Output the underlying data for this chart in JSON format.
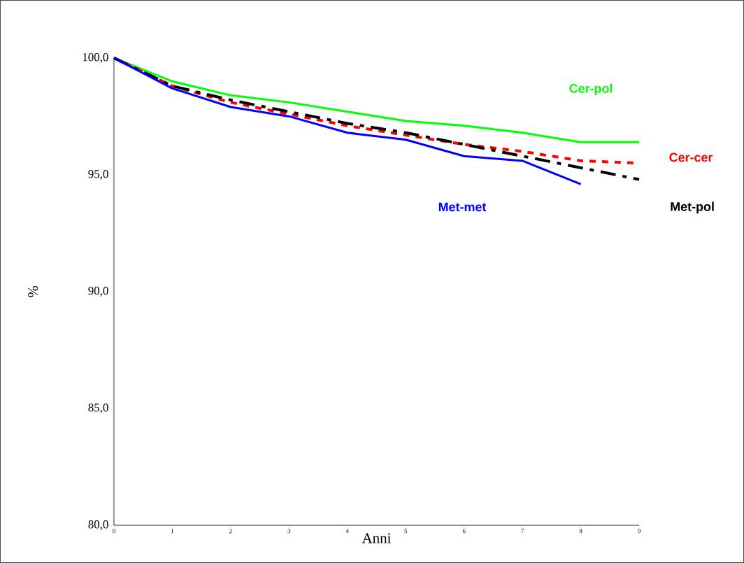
{
  "chart_data": {
    "type": "line",
    "xlabel": "Anni",
    "ylabel": "%",
    "x": [
      0,
      1,
      2,
      3,
      4,
      5,
      6,
      7,
      8,
      9
    ],
    "xlim": [
      0,
      9
    ],
    "xticks": [
      0,
      1,
      2,
      3,
      4,
      5,
      6,
      7,
      8,
      9
    ],
    "ylim": [
      80,
      100
    ],
    "yticks": [
      {
        "value": 80,
        "label": "80,0"
      },
      {
        "value": 85,
        "label": "85,0"
      },
      {
        "value": 90,
        "label": "90,0"
      },
      {
        "value": 95,
        "label": "95,0"
      },
      {
        "value": 100,
        "label": "100,0"
      }
    ],
    "grid": false,
    "series": [
      {
        "name": "Cer-pol",
        "color": "#00ff00",
        "line_style": "solid",
        "values": [
          100,
          99.0,
          98.4,
          98.1,
          97.7,
          97.3,
          97.1,
          96.8,
          96.4,
          96.4
        ]
      },
      {
        "name": "Cer-cer",
        "color": "#ff0000",
        "line_style": "dotted",
        "values": [
          100,
          98.8,
          98.1,
          97.6,
          97.1,
          96.7,
          96.3,
          96.0,
          95.6,
          95.5
        ]
      },
      {
        "name": "Met-pol",
        "color": "#000000",
        "line_style": "dashed",
        "values": [
          100,
          98.8,
          98.2,
          97.7,
          97.2,
          96.8,
          96.3,
          95.8,
          95.3,
          94.8
        ]
      },
      {
        "name": "Met-met",
        "color": "#0000ff",
        "line_style": "solid",
        "values": [
          100,
          98.7,
          97.9,
          97.5,
          96.8,
          96.5,
          95.8,
          95.6,
          94.6,
          null
        ]
      }
    ]
  }
}
